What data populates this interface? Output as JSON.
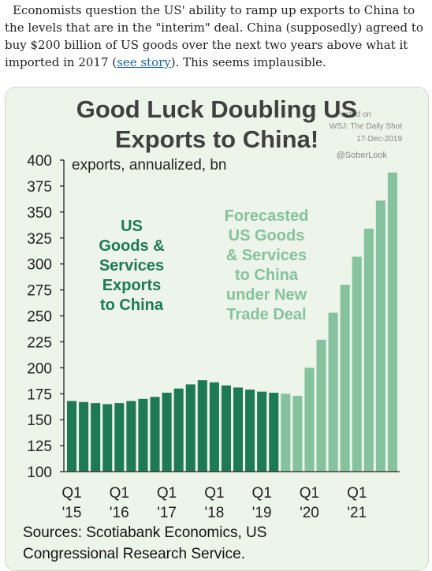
{
  "article": {
    "sentence_1": "Economists question the US' ability to ramp up exports to China to the levels that are in the \"interim\" deal. China (supposedly) agreed to buy $200 billion of US goods over the next two years above what it imported in 2017 (",
    "link_text": "see story",
    "sentence_2": "). This seems implausible."
  },
  "chart_data": {
    "type": "bar",
    "title": [
      "Good Luck Doubling US",
      "Exports to China!"
    ],
    "units_label": "exports, annualized, bn",
    "ylim": [
      100,
      400
    ],
    "y_ticks": [
      100,
      125,
      150,
      175,
      200,
      225,
      250,
      275,
      300,
      325,
      350,
      375,
      400
    ],
    "x_tick_labels": [
      {
        "quarter": "Q1",
        "year": "'15",
        "index": 0
      },
      {
        "quarter": "Q1",
        "year": "'16",
        "index": 4
      },
      {
        "quarter": "Q1",
        "year": "'17",
        "index": 8
      },
      {
        "quarter": "Q1",
        "year": "'18",
        "index": 12
      },
      {
        "quarter": "Q1",
        "year": "'19",
        "index": 16
      },
      {
        "quarter": "Q1",
        "year": "'20",
        "index": 20
      },
      {
        "quarter": "Q1",
        "year": "'21",
        "index": 24
      }
    ],
    "series": [
      {
        "name": "US Goods & Services Exports to China",
        "color": "#1e7a55",
        "start_index": 0,
        "values": [
          168,
          167,
          166,
          165,
          166,
          168,
          170,
          172,
          176,
          180,
          184,
          188,
          186,
          183,
          181,
          179,
          177,
          176
        ]
      },
      {
        "name": "Forecasted US Goods & Services to China under New Trade Deal",
        "color": "#86c29e",
        "start_index": 18,
        "values": [
          175,
          173,
          200,
          227,
          253,
          280,
          307,
          334,
          361,
          388
        ]
      }
    ],
    "annotation_actual": [
      "US",
      "Goods &",
      "Services",
      "Exports",
      "to China"
    ],
    "annotation_forecast": [
      "Forecasted",
      "US Goods",
      "& Services",
      "to China",
      "under New",
      "Trade Deal"
    ],
    "credit": [
      "Posted on",
      "WSJ: The Daily Shot",
      "17-Dec-2019",
      "@SoberLook"
    ],
    "sources": [
      "Sources: Scotiabank Economics, US",
      "Congressional Research Service."
    ]
  }
}
